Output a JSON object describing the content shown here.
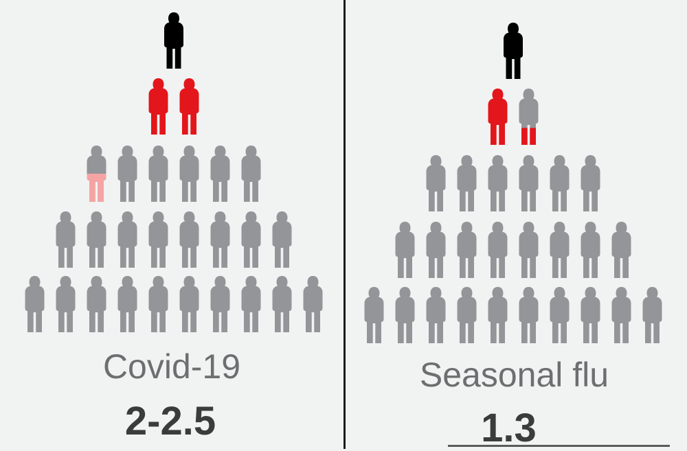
{
  "colors": {
    "background": "#f1f2f2",
    "infected": "#000000",
    "first_generation": "#e3161b",
    "partial_infection": "#f5a4a3",
    "uninfected": "#939598",
    "text": "#6d6e70",
    "value_text": "#3b3b3b"
  },
  "covid": {
    "label": "Covid-19",
    "value": "2-2.5",
    "rows": [
      {
        "count": 1,
        "color": "infected"
      },
      {
        "count": 2,
        "color": "first_generation"
      },
      {
        "count": 6,
        "color": "uninfected",
        "partial_first_fraction": 0.5
      },
      {
        "count": 8,
        "color": "uninfected"
      },
      {
        "count": 10,
        "color": "uninfected"
      }
    ]
  },
  "flu": {
    "label": "Seasonal flu",
    "value": "1.3",
    "rows": [
      {
        "count": 1,
        "color": "infected"
      },
      {
        "count": 2,
        "color": "first_generation",
        "partial_second_fraction": 0.3
      },
      {
        "count": 6,
        "color": "uninfected"
      },
      {
        "count": 8,
        "color": "uninfected"
      },
      {
        "count": 10,
        "color": "uninfected"
      }
    ]
  }
}
